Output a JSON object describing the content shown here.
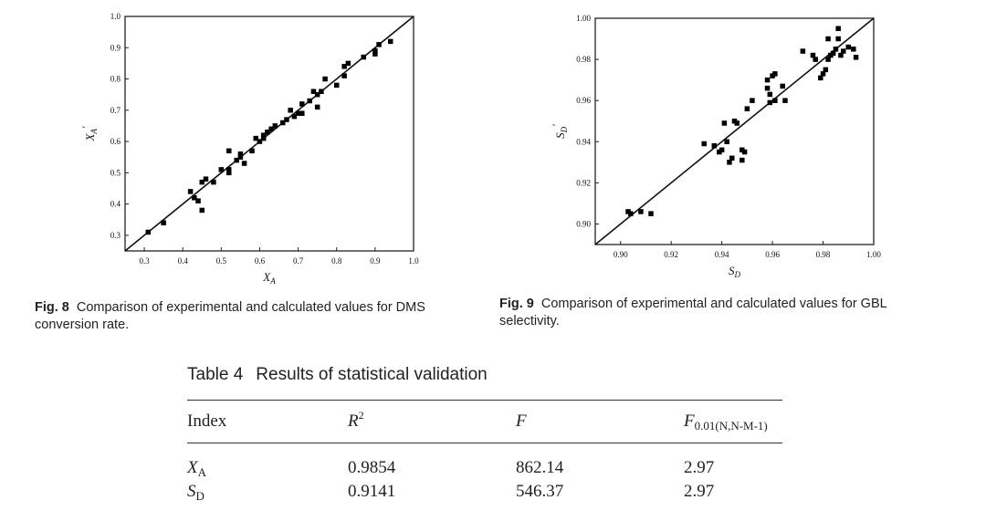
{
  "figures": [
    {
      "id": "fig8",
      "caption_label": "Fig. 8",
      "caption_text": "Comparison of experimental and calculated values for DMS conversion rate.",
      "chart_data": {
        "type": "scatter",
        "xlabel_main": "X",
        "xlabel_sub": "A",
        "ylabel_main": "X",
        "ylabel_sub": "A",
        "ylabel_prime": "′",
        "xlim": [
          0.25,
          1.0
        ],
        "ylim": [
          0.25,
          1.0
        ],
        "xticks": [
          "0.3",
          "0.4",
          "0.5",
          "0.6",
          "0.7",
          "0.8",
          "0.9",
          "1.0"
        ],
        "yticks": [
          "0.3",
          "0.4",
          "0.5",
          "0.6",
          "0.7",
          "0.8",
          "0.9",
          "1.0"
        ],
        "reference_line": "y = x",
        "points": [
          [
            0.31,
            0.31
          ],
          [
            0.35,
            0.34
          ],
          [
            0.42,
            0.44
          ],
          [
            0.43,
            0.42
          ],
          [
            0.44,
            0.41
          ],
          [
            0.45,
            0.38
          ],
          [
            0.45,
            0.47
          ],
          [
            0.46,
            0.48
          ],
          [
            0.48,
            0.47
          ],
          [
            0.5,
            0.51
          ],
          [
            0.52,
            0.5
          ],
          [
            0.52,
            0.51
          ],
          [
            0.52,
            0.57
          ],
          [
            0.54,
            0.54
          ],
          [
            0.55,
            0.55
          ],
          [
            0.55,
            0.56
          ],
          [
            0.56,
            0.53
          ],
          [
            0.58,
            0.57
          ],
          [
            0.59,
            0.61
          ],
          [
            0.6,
            0.6
          ],
          [
            0.61,
            0.61
          ],
          [
            0.61,
            0.62
          ],
          [
            0.62,
            0.63
          ],
          [
            0.63,
            0.64
          ],
          [
            0.64,
            0.65
          ],
          [
            0.66,
            0.66
          ],
          [
            0.67,
            0.67
          ],
          [
            0.68,
            0.7
          ],
          [
            0.69,
            0.68
          ],
          [
            0.7,
            0.69
          ],
          [
            0.71,
            0.72
          ],
          [
            0.71,
            0.69
          ],
          [
            0.73,
            0.73
          ],
          [
            0.74,
            0.76
          ],
          [
            0.75,
            0.71
          ],
          [
            0.75,
            0.75
          ],
          [
            0.76,
            0.76
          ],
          [
            0.77,
            0.8
          ],
          [
            0.8,
            0.78
          ],
          [
            0.82,
            0.84
          ],
          [
            0.82,
            0.81
          ],
          [
            0.83,
            0.85
          ],
          [
            0.87,
            0.87
          ],
          [
            0.9,
            0.88
          ],
          [
            0.9,
            0.89
          ],
          [
            0.91,
            0.91
          ],
          [
            0.94,
            0.92
          ]
        ]
      }
    },
    {
      "id": "fig9",
      "caption_label": "Fig. 9",
      "caption_text": "Comparison of experimental and calculated values for GBL selectivity.",
      "chart_data": {
        "type": "scatter",
        "xlabel_main": "S",
        "xlabel_sub": "D",
        "ylabel_main": "S",
        "ylabel_sub": "D",
        "ylabel_prime": "′",
        "xlim": [
          0.89,
          1.0
        ],
        "ylim": [
          0.89,
          1.0
        ],
        "xticks": [
          "0.90",
          "0.92",
          "0.94",
          "0.96",
          "0.98",
          "1.00"
        ],
        "yticks": [
          "0.90",
          "0.92",
          "0.94",
          "0.96",
          "0.98",
          "1.00"
        ],
        "reference_line": "y = x",
        "points": [
          [
            0.903,
            0.906
          ],
          [
            0.904,
            0.905
          ],
          [
            0.908,
            0.906
          ],
          [
            0.912,
            0.905
          ],
          [
            0.933,
            0.939
          ],
          [
            0.937,
            0.938
          ],
          [
            0.939,
            0.935
          ],
          [
            0.94,
            0.936
          ],
          [
            0.941,
            0.949
          ],
          [
            0.942,
            0.94
          ],
          [
            0.943,
            0.93
          ],
          [
            0.944,
            0.932
          ],
          [
            0.945,
            0.95
          ],
          [
            0.946,
            0.949
          ],
          [
            0.948,
            0.936
          ],
          [
            0.948,
            0.931
          ],
          [
            0.949,
            0.935
          ],
          [
            0.95,
            0.956
          ],
          [
            0.952,
            0.96
          ],
          [
            0.958,
            0.97
          ],
          [
            0.958,
            0.966
          ],
          [
            0.959,
            0.963
          ],
          [
            0.959,
            0.959
          ],
          [
            0.96,
            0.972
          ],
          [
            0.961,
            0.973
          ],
          [
            0.961,
            0.96
          ],
          [
            0.964,
            0.967
          ],
          [
            0.965,
            0.96
          ],
          [
            0.972,
            0.984
          ],
          [
            0.976,
            0.982
          ],
          [
            0.977,
            0.98
          ],
          [
            0.979,
            0.971
          ],
          [
            0.98,
            0.973
          ],
          [
            0.981,
            0.975
          ],
          [
            0.982,
            0.98
          ],
          [
            0.982,
            0.99
          ],
          [
            0.983,
            0.982
          ],
          [
            0.984,
            0.983
          ],
          [
            0.985,
            0.985
          ],
          [
            0.986,
            0.995
          ],
          [
            0.986,
            0.99
          ],
          [
            0.987,
            0.982
          ],
          [
            0.988,
            0.984
          ],
          [
            0.99,
            0.986
          ],
          [
            0.992,
            0.985
          ],
          [
            0.993,
            0.981
          ]
        ]
      }
    }
  ],
  "table": {
    "label": "Table 4",
    "title": "Results of statistical validation",
    "header": {
      "index": "Index",
      "r2_main": "R",
      "r2_sup": "2",
      "f": "F",
      "fcrit_main": "F",
      "fcrit_sub": "0.01(N,N-M-1)"
    },
    "rows": [
      {
        "index_main": "X",
        "index_sub": "A",
        "r2": "0.9854",
        "f": "862.14",
        "fcrit": "2.97"
      },
      {
        "index_main": "S",
        "index_sub": "D",
        "r2": "0.9141",
        "f": "546.37",
        "fcrit": "2.97"
      }
    ]
  }
}
